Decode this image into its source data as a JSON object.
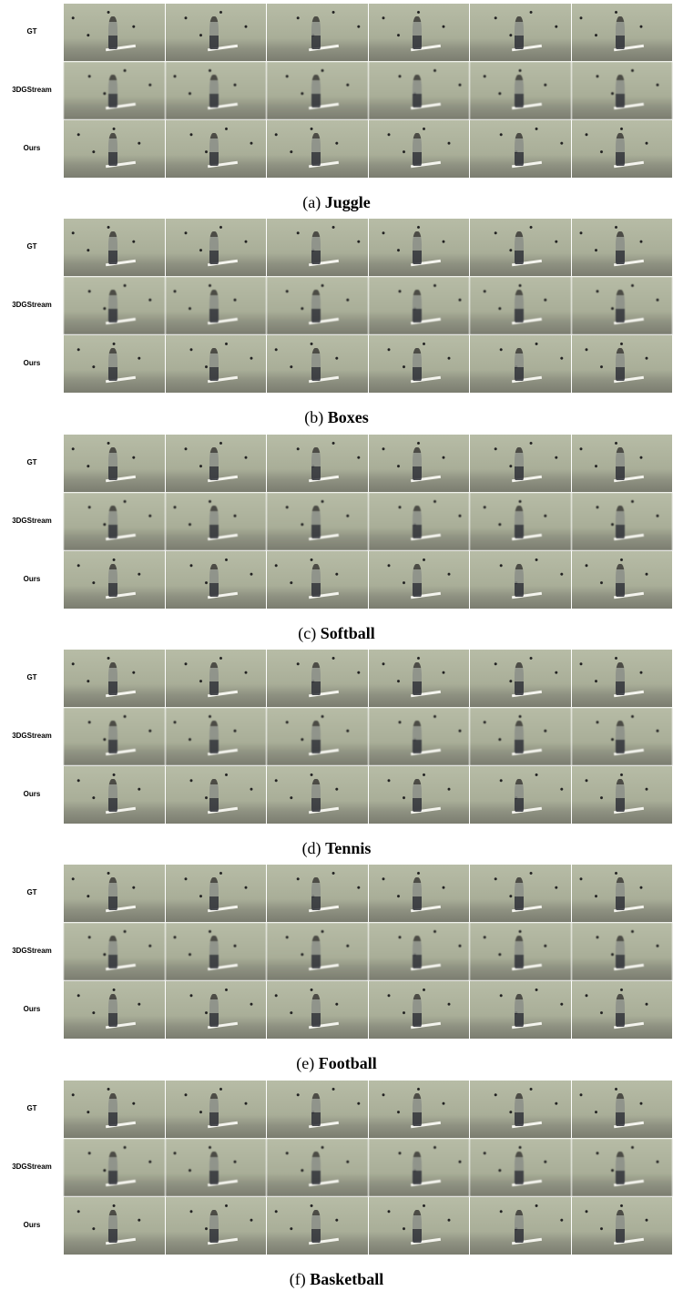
{
  "panels": [
    {
      "label": "(a)",
      "name": "Juggle",
      "rows": [
        "GT",
        "3DGStream",
        "Ours"
      ]
    },
    {
      "label": "(b)",
      "name": "Boxes",
      "rows": [
        "GT",
        "3DGStream",
        "Ours"
      ]
    },
    {
      "label": "(c)",
      "name": "Softball",
      "rows": [
        "GT",
        "3DGStream",
        "Ours"
      ]
    },
    {
      "label": "(d)",
      "name": "Tennis",
      "rows": [
        "GT",
        "3DGStream",
        "Ours"
      ]
    },
    {
      "label": "(e)",
      "name": "Football",
      "rows": [
        "GT",
        "3DGStream",
        "Ours"
      ]
    },
    {
      "label": "(f)",
      "name": "Basketball",
      "rows": [
        "GT",
        "3DGStream",
        "Ours"
      ]
    }
  ]
}
